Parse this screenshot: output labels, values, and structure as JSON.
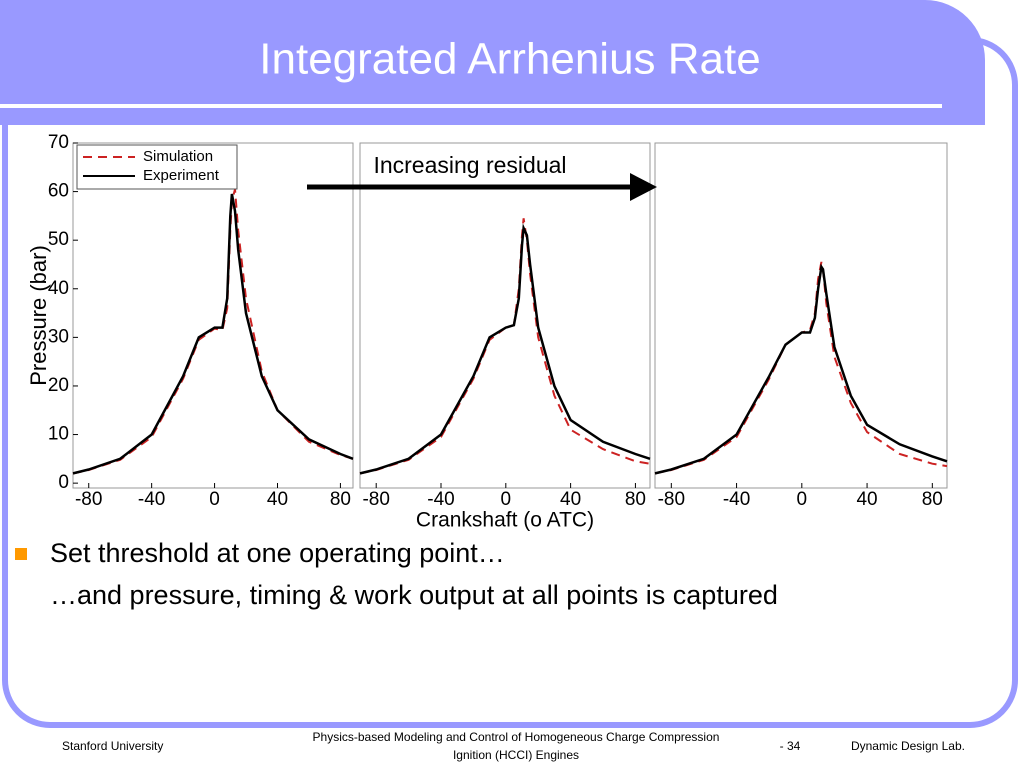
{
  "slide": {
    "title": "Integrated Arrhenius Rate",
    "annotation": "Increasing residual",
    "bullets": [
      "Set threshold at one operating point…",
      "…and pressure, timing & work output at all points is captured"
    ],
    "footer": {
      "left": "Stanford University",
      "center": [
        "Physics-based Modeling and Control of Homogeneous Charge Compression",
        "Ignition (HCCI) Engines"
      ],
      "page": "- 34",
      "right": "Dynamic Design Lab."
    }
  },
  "chart_data": [
    {
      "type": "line",
      "ylabel": "Pressure (bar)",
      "x": [
        -90,
        -80,
        -60,
        -40,
        -20,
        -10,
        0,
        5,
        8,
        10,
        11,
        13,
        15,
        20,
        30,
        40,
        60,
        80,
        88
      ],
      "xlim": [
        -90,
        88
      ],
      "xticks": [
        -80,
        -40,
        0,
        40,
        80
      ],
      "ylim": [
        -1,
        70
      ],
      "yticks": [
        0,
        10,
        20,
        30,
        40,
        50,
        60,
        70
      ],
      "legend": "upper left",
      "series": [
        {
          "name": "Simulation",
          "color": "#cc2222",
          "dash": true,
          "values": [
            2,
            2.7,
            4.8,
            9.5,
            21.5,
            29.5,
            31.8,
            31.5,
            36,
            52,
            58,
            60.5,
            52,
            38,
            23,
            15,
            8.5,
            5.8,
            5
          ]
        },
        {
          "name": "Experiment",
          "color": "#000000",
          "dash": false,
          "values": [
            2,
            2.8,
            5,
            10,
            22,
            30,
            32,
            32,
            38,
            55,
            59.5,
            56,
            48,
            35,
            22,
            15,
            9,
            6,
            5
          ]
        }
      ]
    },
    {
      "type": "line",
      "xlabel": "Crankshaft (o ATC)",
      "x": [
        -90,
        -80,
        -60,
        -40,
        -20,
        -10,
        0,
        5,
        8,
        10,
        11,
        13,
        15,
        20,
        30,
        40,
        60,
        80,
        89
      ],
      "xlim": [
        -90,
        89
      ],
      "xticks": [
        -80,
        -40,
        0,
        40,
        80
      ],
      "ylim": [
        -1,
        70
      ],
      "series": [
        {
          "color": "#cc2222",
          "dash": true,
          "values": [
            2,
            2.7,
            4.8,
            9.5,
            21.5,
            29.5,
            32,
            32.5,
            40,
            51,
            54.5,
            50,
            43,
            30,
            18,
            11,
            7,
            4.5,
            4
          ]
        },
        {
          "color": "#000000",
          "dash": false,
          "values": [
            2,
            2.8,
            5,
            10,
            22,
            30,
            32,
            32.5,
            38,
            49,
            52.5,
            51,
            45,
            32,
            20,
            13,
            8.5,
            6,
            5
          ]
        }
      ]
    },
    {
      "type": "line",
      "x": [
        -90,
        -80,
        -60,
        -40,
        -20,
        -10,
        0,
        5,
        8,
        10,
        12,
        13,
        15,
        20,
        30,
        40,
        60,
        80,
        89
      ],
      "xlim": [
        -90,
        89
      ],
      "xticks": [
        -80,
        -40,
        0,
        40,
        80
      ],
      "ylim": [
        -1,
        70
      ],
      "series": [
        {
          "color": "#cc2222",
          "dash": true,
          "values": [
            2,
            2.7,
            4.8,
            9.5,
            21.5,
            28.5,
            31,
            31.5,
            35,
            42,
            45.5,
            44,
            37,
            26,
            16.5,
            10.5,
            6,
            4,
            3.5
          ]
        },
        {
          "color": "#000000",
          "dash": false,
          "values": [
            2,
            2.8,
            5,
            10,
            22,
            28.5,
            31,
            31,
            34,
            40,
            44.5,
            44,
            39,
            28,
            18,
            12,
            8,
            5.5,
            4.5
          ]
        }
      ]
    }
  ]
}
